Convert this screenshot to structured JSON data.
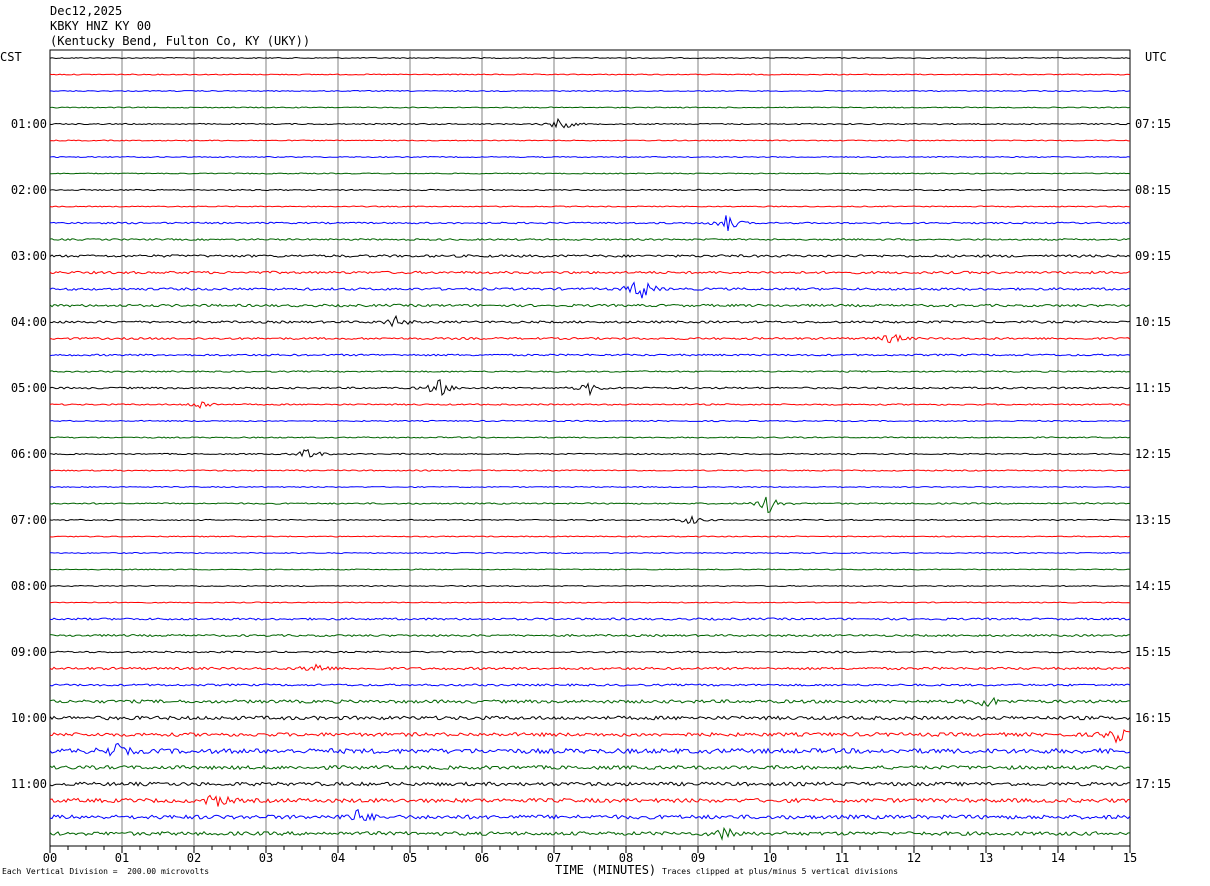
{
  "header": {
    "date": "Dec12,2025",
    "station": "KBKY HNZ KY 00",
    "location": "(Kentucky Bend, Fulton Co, KY (UKY))"
  },
  "left_axis_title": "CST",
  "right_axis_title": "UTC",
  "footer": {
    "scale_note": "Each Vertical Division =  200.00 microvolts",
    "xlabel": "TIME (MINUTES)",
    "clip_note": "Traces clipped at plus/minus 5 vertical divisions"
  },
  "colors": {
    "trace_cycle": [
      "#000000",
      "#ff0000",
      "#0000ff",
      "#006400"
    ],
    "grid": "#808080"
  },
  "chart_data": {
    "type": "line",
    "title": "KBKY HNZ KY 00 helicorder",
    "xlabel": "TIME (MINUTES)",
    "xlim": [
      0,
      15
    ],
    "x_ticks": [
      "00",
      "01",
      "02",
      "03",
      "04",
      "05",
      "06",
      "07",
      "08",
      "09",
      "10",
      "11",
      "12",
      "13",
      "14",
      "15"
    ],
    "row_minutes": 15,
    "row_count": 48,
    "cst_hour_labels": [
      "01:00",
      "02:00",
      "03:00",
      "04:00",
      "05:00",
      "06:00",
      "07:00",
      "08:00",
      "09:00",
      "10:00",
      "11:00"
    ],
    "utc_hour_labels": [
      "07:15",
      "08:15",
      "09:15",
      "10:15",
      "11:15",
      "12:15",
      "13:15",
      "14:15",
      "15:15",
      "16:15",
      "17:15"
    ],
    "hour_label_rows": [
      4,
      8,
      12,
      16,
      20,
      24,
      28,
      32,
      36,
      40,
      44
    ],
    "row_amplitude": [
      0.5,
      0.5,
      0.5,
      0.5,
      0.6,
      0.5,
      0.5,
      0.5,
      0.6,
      0.5,
      0.8,
      0.8,
      1.2,
      1.2,
      1.2,
      1.2,
      1.1,
      1.0,
      0.9,
      0.7,
      0.9,
      0.7,
      0.6,
      0.6,
      0.6,
      0.6,
      0.5,
      0.7,
      0.6,
      0.5,
      0.5,
      0.5,
      0.5,
      0.5,
      1.0,
      1.0,
      0.8,
      1.2,
      1.0,
      1.6,
      1.8,
      1.8,
      2.4,
      1.8,
      1.8,
      2.0,
      2.0,
      1.8
    ],
    "events": [
      {
        "row": 4,
        "minute": 7.1,
        "amp": 8
      },
      {
        "row": 10,
        "minute": 9.4,
        "amp": 10
      },
      {
        "row": 14,
        "minute": 8.2,
        "amp": 14
      },
      {
        "row": 16,
        "minute": 4.8,
        "amp": 6
      },
      {
        "row": 17,
        "minute": 11.7,
        "amp": 6
      },
      {
        "row": 20,
        "minute": 5.4,
        "amp": 10
      },
      {
        "row": 20,
        "minute": 7.5,
        "amp": 6
      },
      {
        "row": 21,
        "minute": 2.1,
        "amp": 5
      },
      {
        "row": 24,
        "minute": 3.6,
        "amp": 7
      },
      {
        "row": 27,
        "minute": 10.0,
        "amp": 12
      },
      {
        "row": 28,
        "minute": 8.9,
        "amp": 5
      },
      {
        "row": 37,
        "minute": 3.7,
        "amp": 6
      },
      {
        "row": 39,
        "minute": 13.0,
        "amp": 7
      },
      {
        "row": 41,
        "minute": 14.8,
        "amp": 9
      },
      {
        "row": 42,
        "minute": 0.9,
        "amp": 8
      },
      {
        "row": 45,
        "minute": 2.3,
        "amp": 8
      },
      {
        "row": 46,
        "minute": 4.3,
        "amp": 8
      },
      {
        "row": 47,
        "minute": 9.4,
        "amp": 8
      }
    ]
  }
}
